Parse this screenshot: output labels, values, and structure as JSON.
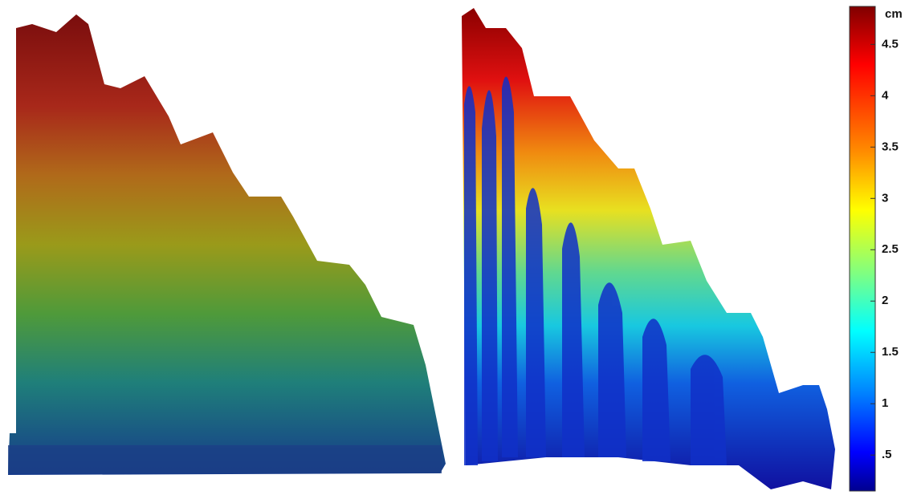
{
  "colorbar": {
    "unit": "cm",
    "range": [
      0.15,
      4.87
    ],
    "ticks": [
      4.5,
      4,
      3.5,
      3,
      2.5,
      2,
      1.5,
      1,
      {
        "value": 0.5,
        "label": ".5"
      }
    ]
  }
}
